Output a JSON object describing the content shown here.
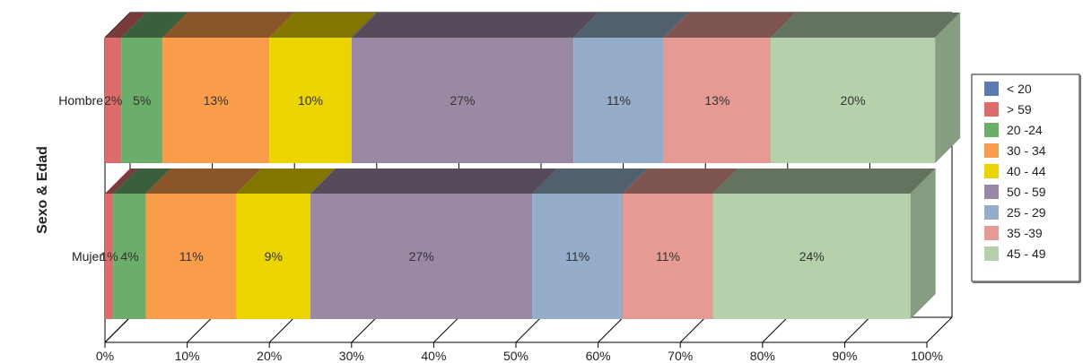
{
  "chart_data": {
    "type": "bar",
    "orientation": "horizontal",
    "stacked": "percent",
    "ylabel": "Sexo & Edad",
    "categories": [
      "Hombre",
      "Mujer"
    ],
    "x_ticks": [
      "0%",
      "10%",
      "20%",
      "30%",
      "40%",
      "50%",
      "60%",
      "70%",
      "80%",
      "90%",
      "100%"
    ],
    "xlim": [
      0,
      100
    ],
    "grid": true,
    "legend": "right",
    "series": [
      {
        "name": "< 20",
        "color": "#5b7bb0",
        "values": [
          0,
          0
        ],
        "labels": [
          "",
          ""
        ]
      },
      {
        "name": "> 59",
        "color": "#dc6b6b",
        "values": [
          2,
          1
        ],
        "labels": [
          "2%",
          "1%"
        ]
      },
      {
        "name": "20 -24",
        "color": "#6bad6b",
        "values": [
          5,
          4
        ],
        "labels": [
          "5%",
          "4%"
        ]
      },
      {
        "name": "30 - 34",
        "color": "#fa9d4a",
        "values": [
          13,
          11
        ],
        "labels": [
          "13%",
          "11%"
        ]
      },
      {
        "name": "40 - 44",
        "color": "#ecd400",
        "values": [
          10,
          9
        ],
        "labels": [
          "10%",
          "9%"
        ]
      },
      {
        "name": "50 - 59",
        "color": "#9a88a4",
        "values": [
          27,
          27
        ],
        "labels": [
          "27%",
          "27%"
        ]
      },
      {
        "name": "25 - 29",
        "color": "#95acca",
        "values": [
          11,
          11
        ],
        "labels": [
          "11%",
          "11%"
        ]
      },
      {
        "name": "35 -39",
        "color": "#e69a94",
        "values": [
          13,
          11
        ],
        "labels": [
          "13%",
          "11%"
        ]
      },
      {
        "name": "45 - 49",
        "color": "#b4d1ac",
        "values": [
          20,
          24
        ],
        "labels": [
          "20%",
          "24%"
        ]
      }
    ]
  }
}
